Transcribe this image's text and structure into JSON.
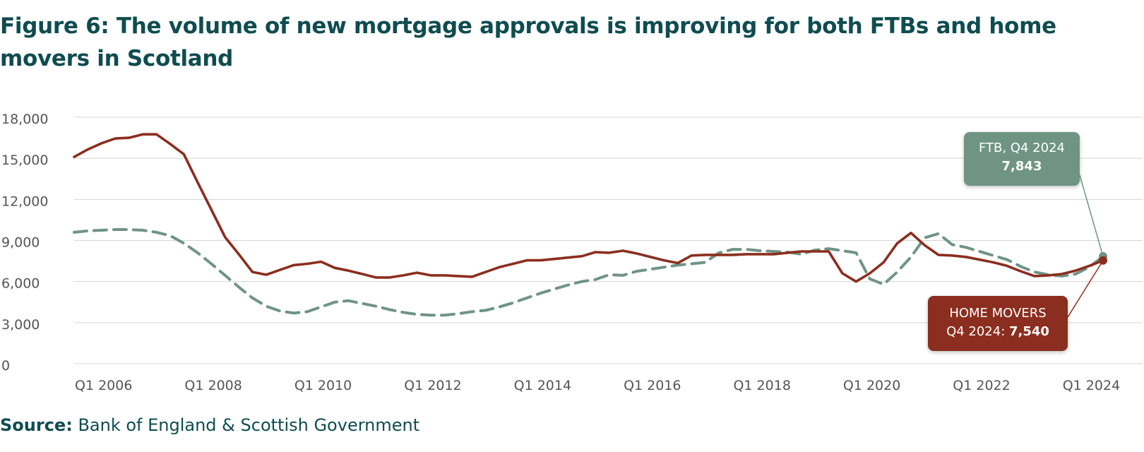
{
  "title": "Figure 6: The volume of new mortgage approvals is improving for both FTBs and home movers in Scotland",
  "source": {
    "label": "Source:",
    "text": "Bank of England & Scottish Government"
  },
  "annotations": {
    "ftb": {
      "line1": "FTB, Q4 2024",
      "value": "7,843"
    },
    "home_movers": {
      "line1": "HOME MOVERS",
      "line2_prefix": "Q4 2024: ",
      "value": "7,540"
    }
  },
  "colors": {
    "title": "#0f4c4f",
    "ftb": "#6f9484",
    "home_movers": "#8b2e1f",
    "grid": "#d4d4d4",
    "axis_text": "#555555"
  },
  "chart_data": {
    "type": "line",
    "title": "Figure 6: The volume of new mortgage approvals is improving for both FTBs and home movers in Scotland",
    "xlabel": "",
    "ylabel": "",
    "ylim": [
      0,
      18000
    ],
    "yticks": [
      0,
      3000,
      6000,
      9000,
      12000,
      15000,
      18000
    ],
    "ytick_labels": [
      "0",
      "3,000",
      "6,000",
      "9,000",
      "12,000",
      "15,000",
      "18,000"
    ],
    "xticks": [
      "Q1 2006",
      "Q1 2008",
      "Q1 2010",
      "Q1 2012",
      "Q1 2014",
      "Q1 2016",
      "Q1 2018",
      "Q1 2020",
      "Q1 2022",
      "Q1 2024"
    ],
    "grid": "horizontal",
    "x": [
      "Q1 2006",
      "Q2 2006",
      "Q3 2006",
      "Q4 2006",
      "Q1 2007",
      "Q2 2007",
      "Q3 2007",
      "Q4 2007",
      "Q1 2008",
      "Q2 2008",
      "Q3 2008",
      "Q4 2008",
      "Q1 2009",
      "Q2 2009",
      "Q3 2009",
      "Q4 2009",
      "Q1 2010",
      "Q2 2010",
      "Q3 2010",
      "Q4 2010",
      "Q1 2011",
      "Q2 2011",
      "Q3 2011",
      "Q4 2011",
      "Q1 2012",
      "Q2 2012",
      "Q3 2012",
      "Q4 2012",
      "Q1 2013",
      "Q2 2013",
      "Q3 2013",
      "Q4 2013",
      "Q1 2014",
      "Q2 2014",
      "Q3 2014",
      "Q4 2014",
      "Q1 2015",
      "Q2 2015",
      "Q3 2015",
      "Q4 2015",
      "Q1 2016",
      "Q2 2016",
      "Q3 2016",
      "Q4 2016",
      "Q1 2017",
      "Q2 2017",
      "Q3 2017",
      "Q4 2017",
      "Q1 2018",
      "Q2 2018",
      "Q3 2018",
      "Q4 2018",
      "Q1 2019",
      "Q2 2019",
      "Q3 2019",
      "Q4 2019",
      "Q1 2020",
      "Q2 2020",
      "Q3 2020",
      "Q4 2020",
      "Q1 2021",
      "Q2 2021",
      "Q3 2021",
      "Q4 2021",
      "Q1 2022",
      "Q2 2022",
      "Q3 2022",
      "Q4 2022",
      "Q1 2023",
      "Q2 2023",
      "Q3 2023",
      "Q4 2023",
      "Q1 2024",
      "Q2 2024",
      "Q3 2024",
      "Q4 2024"
    ],
    "series": [
      {
        "name": "HOME MOVERS",
        "style": "solid",
        "values": [
          15100,
          15650,
          16100,
          16450,
          16500,
          16750,
          16750,
          16050,
          15300,
          13250,
          11250,
          9250,
          8000,
          6700,
          6500,
          6850,
          7200,
          7300,
          7450,
          7000,
          6800,
          6550,
          6300,
          6300,
          6450,
          6650,
          6450,
          6450,
          6400,
          6350,
          6700,
          7050,
          7300,
          7550,
          7550,
          7650,
          7750,
          7850,
          8150,
          8100,
          8250,
          8050,
          7800,
          7550,
          7350,
          7900,
          7950,
          7950,
          7950,
          8000,
          8000,
          8000,
          8100,
          8200,
          8200,
          8200,
          6600,
          6000,
          6600,
          7400,
          8800,
          9550,
          8650,
          7950,
          7900,
          7800,
          7600,
          7400,
          7150,
          6750,
          6400,
          6450,
          6550,
          6800,
          7150,
          7540
        ]
      },
      {
        "name": "FTB",
        "style": "dashed",
        "values": [
          9600,
          9700,
          9750,
          9800,
          9800,
          9750,
          9600,
          9350,
          8800,
          8100,
          7300,
          6450,
          5600,
          4800,
          4200,
          3850,
          3700,
          3800,
          4150,
          4500,
          4600,
          4400,
          4200,
          3950,
          3750,
          3600,
          3550,
          3550,
          3650,
          3800,
          3900,
          4150,
          4450,
          4800,
          5150,
          5450,
          5750,
          6000,
          6150,
          6500,
          6450,
          6750,
          6900,
          7050,
          7200,
          7300,
          7400,
          8100,
          8350,
          8350,
          8250,
          8200,
          8150,
          8000,
          8300,
          8400,
          8250,
          8100,
          6200,
          5800,
          6700,
          7800,
          9200,
          9500,
          8700,
          8500,
          8200,
          7900,
          7600,
          7100,
          6700,
          6500,
          6400,
          6550,
          7050,
          7843
        ]
      }
    ]
  }
}
